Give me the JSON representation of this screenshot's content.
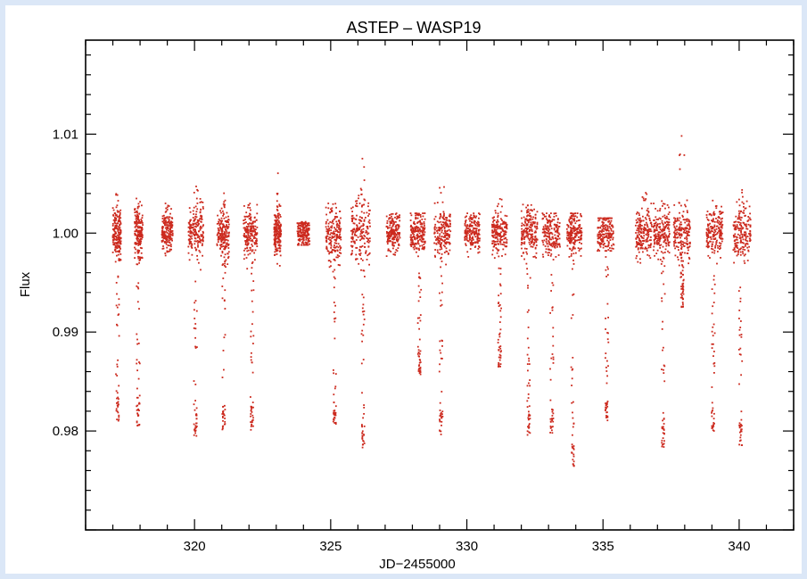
{
  "chart_data": {
    "type": "scatter",
    "title": "ASTEP – WASP19",
    "xlabel": "JD−2455000",
    "ylabel": "Flux",
    "xlim": [
      316,
      342
    ],
    "ylim": [
      0.97,
      1.0195
    ],
    "xticks": [
      320,
      325,
      330,
      335,
      340
    ],
    "yticks": [
      0.98,
      0.99,
      1.0,
      1.01
    ],
    "xtick_labels": [
      "320",
      "325",
      "330",
      "335",
      "340"
    ],
    "ytick_labels": [
      "0.98",
      "0.99",
      "1.00",
      "1.01"
    ],
    "grid": false,
    "point_color": "#cc2a1e",
    "nights": [
      {
        "center": 317.15,
        "width": 0.3,
        "scatter": 0.0012,
        "transit_min": 0.981,
        "hi_max": 1.0042
      },
      {
        "center": 317.95,
        "width": 0.3,
        "scatter": 0.0012,
        "transit_min": 0.9805,
        "hi_max": 1.0035
      },
      {
        "center": 319.0,
        "width": 0.4,
        "scatter": 0.001,
        "hi_max": 1.003
      },
      {
        "center": 320.05,
        "width": 0.55,
        "scatter": 0.0013,
        "transit_min": 0.9795,
        "hi_max": 1.005
      },
      {
        "center": 321.05,
        "width": 0.45,
        "scatter": 0.0012,
        "transit_min": 0.98,
        "hi_max": 1.0042
      },
      {
        "center": 322.05,
        "width": 0.5,
        "scatter": 0.0012,
        "transit_min": 0.98,
        "hi_max": 1.003
      },
      {
        "center": 323.05,
        "width": 0.25,
        "scatter": 0.0011,
        "hi_max": 1.0063
      },
      {
        "center": 324.0,
        "width": 0.45,
        "scatter": 0.0008,
        "hi_max": 1.001
      },
      {
        "center": 325.1,
        "width": 0.55,
        "scatter": 0.0013,
        "transit_min": 0.9805,
        "hi_max": 1.003
      },
      {
        "center": 326.1,
        "width": 0.7,
        "scatter": 0.0018,
        "transit_min": 0.9783,
        "hi_max": 1.0078
      },
      {
        "center": 327.3,
        "width": 0.5,
        "scatter": 0.0009,
        "hi_max": 1.002
      },
      {
        "center": 328.2,
        "width": 0.55,
        "scatter": 0.001,
        "transit_min": 0.9855,
        "hi_max": 1.002
      },
      {
        "center": 329.1,
        "width": 0.6,
        "scatter": 0.0012,
        "transit_min": 0.9795,
        "hi_max": 1.0048
      },
      {
        "center": 330.2,
        "width": 0.55,
        "scatter": 0.0009,
        "hi_max": 1.002
      },
      {
        "center": 331.2,
        "width": 0.55,
        "scatter": 0.001,
        "transit_min": 0.9865,
        "hi_max": 1.004
      },
      {
        "center": 332.3,
        "width": 0.6,
        "scatter": 0.0012,
        "transit_min": 0.9795,
        "hi_max": 1.003
      },
      {
        "center": 333.1,
        "width": 0.65,
        "scatter": 0.001,
        "transit_min": 0.9797,
        "hi_max": 1.002
      },
      {
        "center": 333.95,
        "width": 0.55,
        "scatter": 0.001,
        "transit_min": 0.9763,
        "hi_max": 1.002
      },
      {
        "center": 335.1,
        "width": 0.6,
        "scatter": 0.0009,
        "transit_min": 0.981,
        "hi_max": 1.0015
      },
      {
        "center": 336.5,
        "width": 0.6,
        "scatter": 0.0011,
        "hi_max": 1.0045
      },
      {
        "center": 337.15,
        "width": 0.6,
        "scatter": 0.0011,
        "transit_min": 0.9783,
        "hi_max": 1.004
      },
      {
        "center": 337.9,
        "width": 0.6,
        "scatter": 0.0012,
        "transit_min": 0.9925,
        "hi_max": 1.0105
      },
      {
        "center": 339.1,
        "width": 0.6,
        "scatter": 0.0011,
        "transit_min": 0.98,
        "hi_max": 1.0035
      },
      {
        "center": 340.1,
        "width": 0.65,
        "scatter": 0.0013,
        "transit_min": 0.9785,
        "hi_max": 1.0052
      }
    ]
  }
}
